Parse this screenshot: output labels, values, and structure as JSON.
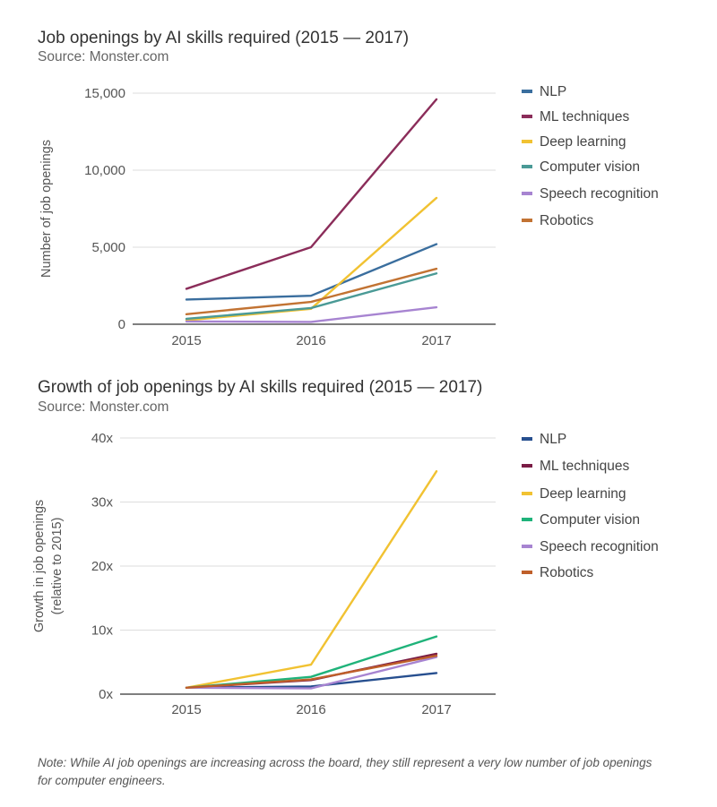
{
  "chart_data": [
    {
      "type": "line",
      "title": "Job openings by AI skills required (2015 — 2017)",
      "subtitle": "Source: Monster.com",
      "xlabel": "",
      "ylabel": "Number of job openings",
      "categories": [
        "2015",
        "2016",
        "2017"
      ],
      "ylim": [
        0,
        15000
      ],
      "yticks": [
        0,
        5000,
        10000,
        15000
      ],
      "ytick_labels": [
        "0",
        "5,000",
        "10,000",
        "15,000"
      ],
      "grid": true,
      "legend": "right",
      "series": [
        {
          "name": "NLP",
          "color": "#3a6e9e",
          "values": [
            1600,
            1850,
            5200
          ]
        },
        {
          "name": "ML techniques",
          "color": "#8b2d5a",
          "values": [
            2300,
            5000,
            14600
          ]
        },
        {
          "name": "Deep learning",
          "color": "#f1c232",
          "values": [
            250,
            1000,
            8200
          ]
        },
        {
          "name": "Computer vision",
          "color": "#4a9a96",
          "values": [
            350,
            1050,
            3300
          ]
        },
        {
          "name": "Speech recognition",
          "color": "#a784d1",
          "values": [
            180,
            150,
            1100
          ]
        },
        {
          "name": "Robotics",
          "color": "#c27333",
          "values": [
            650,
            1450,
            3600
          ]
        }
      ]
    },
    {
      "type": "line",
      "title": "Growth of job openings by AI skills required (2015 — 2017)",
      "subtitle": "Source: Monster.com",
      "xlabel": "",
      "ylabel": "Growth in job openings\n(relative to 2015)",
      "ylabel_lines": [
        "Growth in job openings",
        "(relative to 2015)"
      ],
      "categories": [
        "2015",
        "2016",
        "2017"
      ],
      "ylim": [
        0,
        40
      ],
      "yticks": [
        0,
        10,
        20,
        30,
        40
      ],
      "ytick_labels": [
        "0x",
        "10x",
        "20x",
        "30x",
        "40x"
      ],
      "grid": true,
      "legend": "right",
      "series": [
        {
          "name": "NLP",
          "color": "#274f8f",
          "values": [
            1,
            1.2,
            3.3
          ]
        },
        {
          "name": "ML techniques",
          "color": "#7a1c45",
          "values": [
            1,
            2.2,
            6.3
          ]
        },
        {
          "name": "Deep learning",
          "color": "#f1c232",
          "values": [
            1,
            4.6,
            34.8
          ]
        },
        {
          "name": "Computer vision",
          "color": "#1fb37a",
          "values": [
            1,
            2.7,
            9.0
          ]
        },
        {
          "name": "Speech recognition",
          "color": "#a784d1",
          "values": [
            1,
            0.9,
            5.8
          ]
        },
        {
          "name": "Robotics",
          "color": "#bf5f2a",
          "values": [
            1,
            2.3,
            6.0
          ]
        }
      ]
    }
  ],
  "note": "Note: While AI job openings are increasing across the board, they still represent a very low number of job openings for computer engineers."
}
